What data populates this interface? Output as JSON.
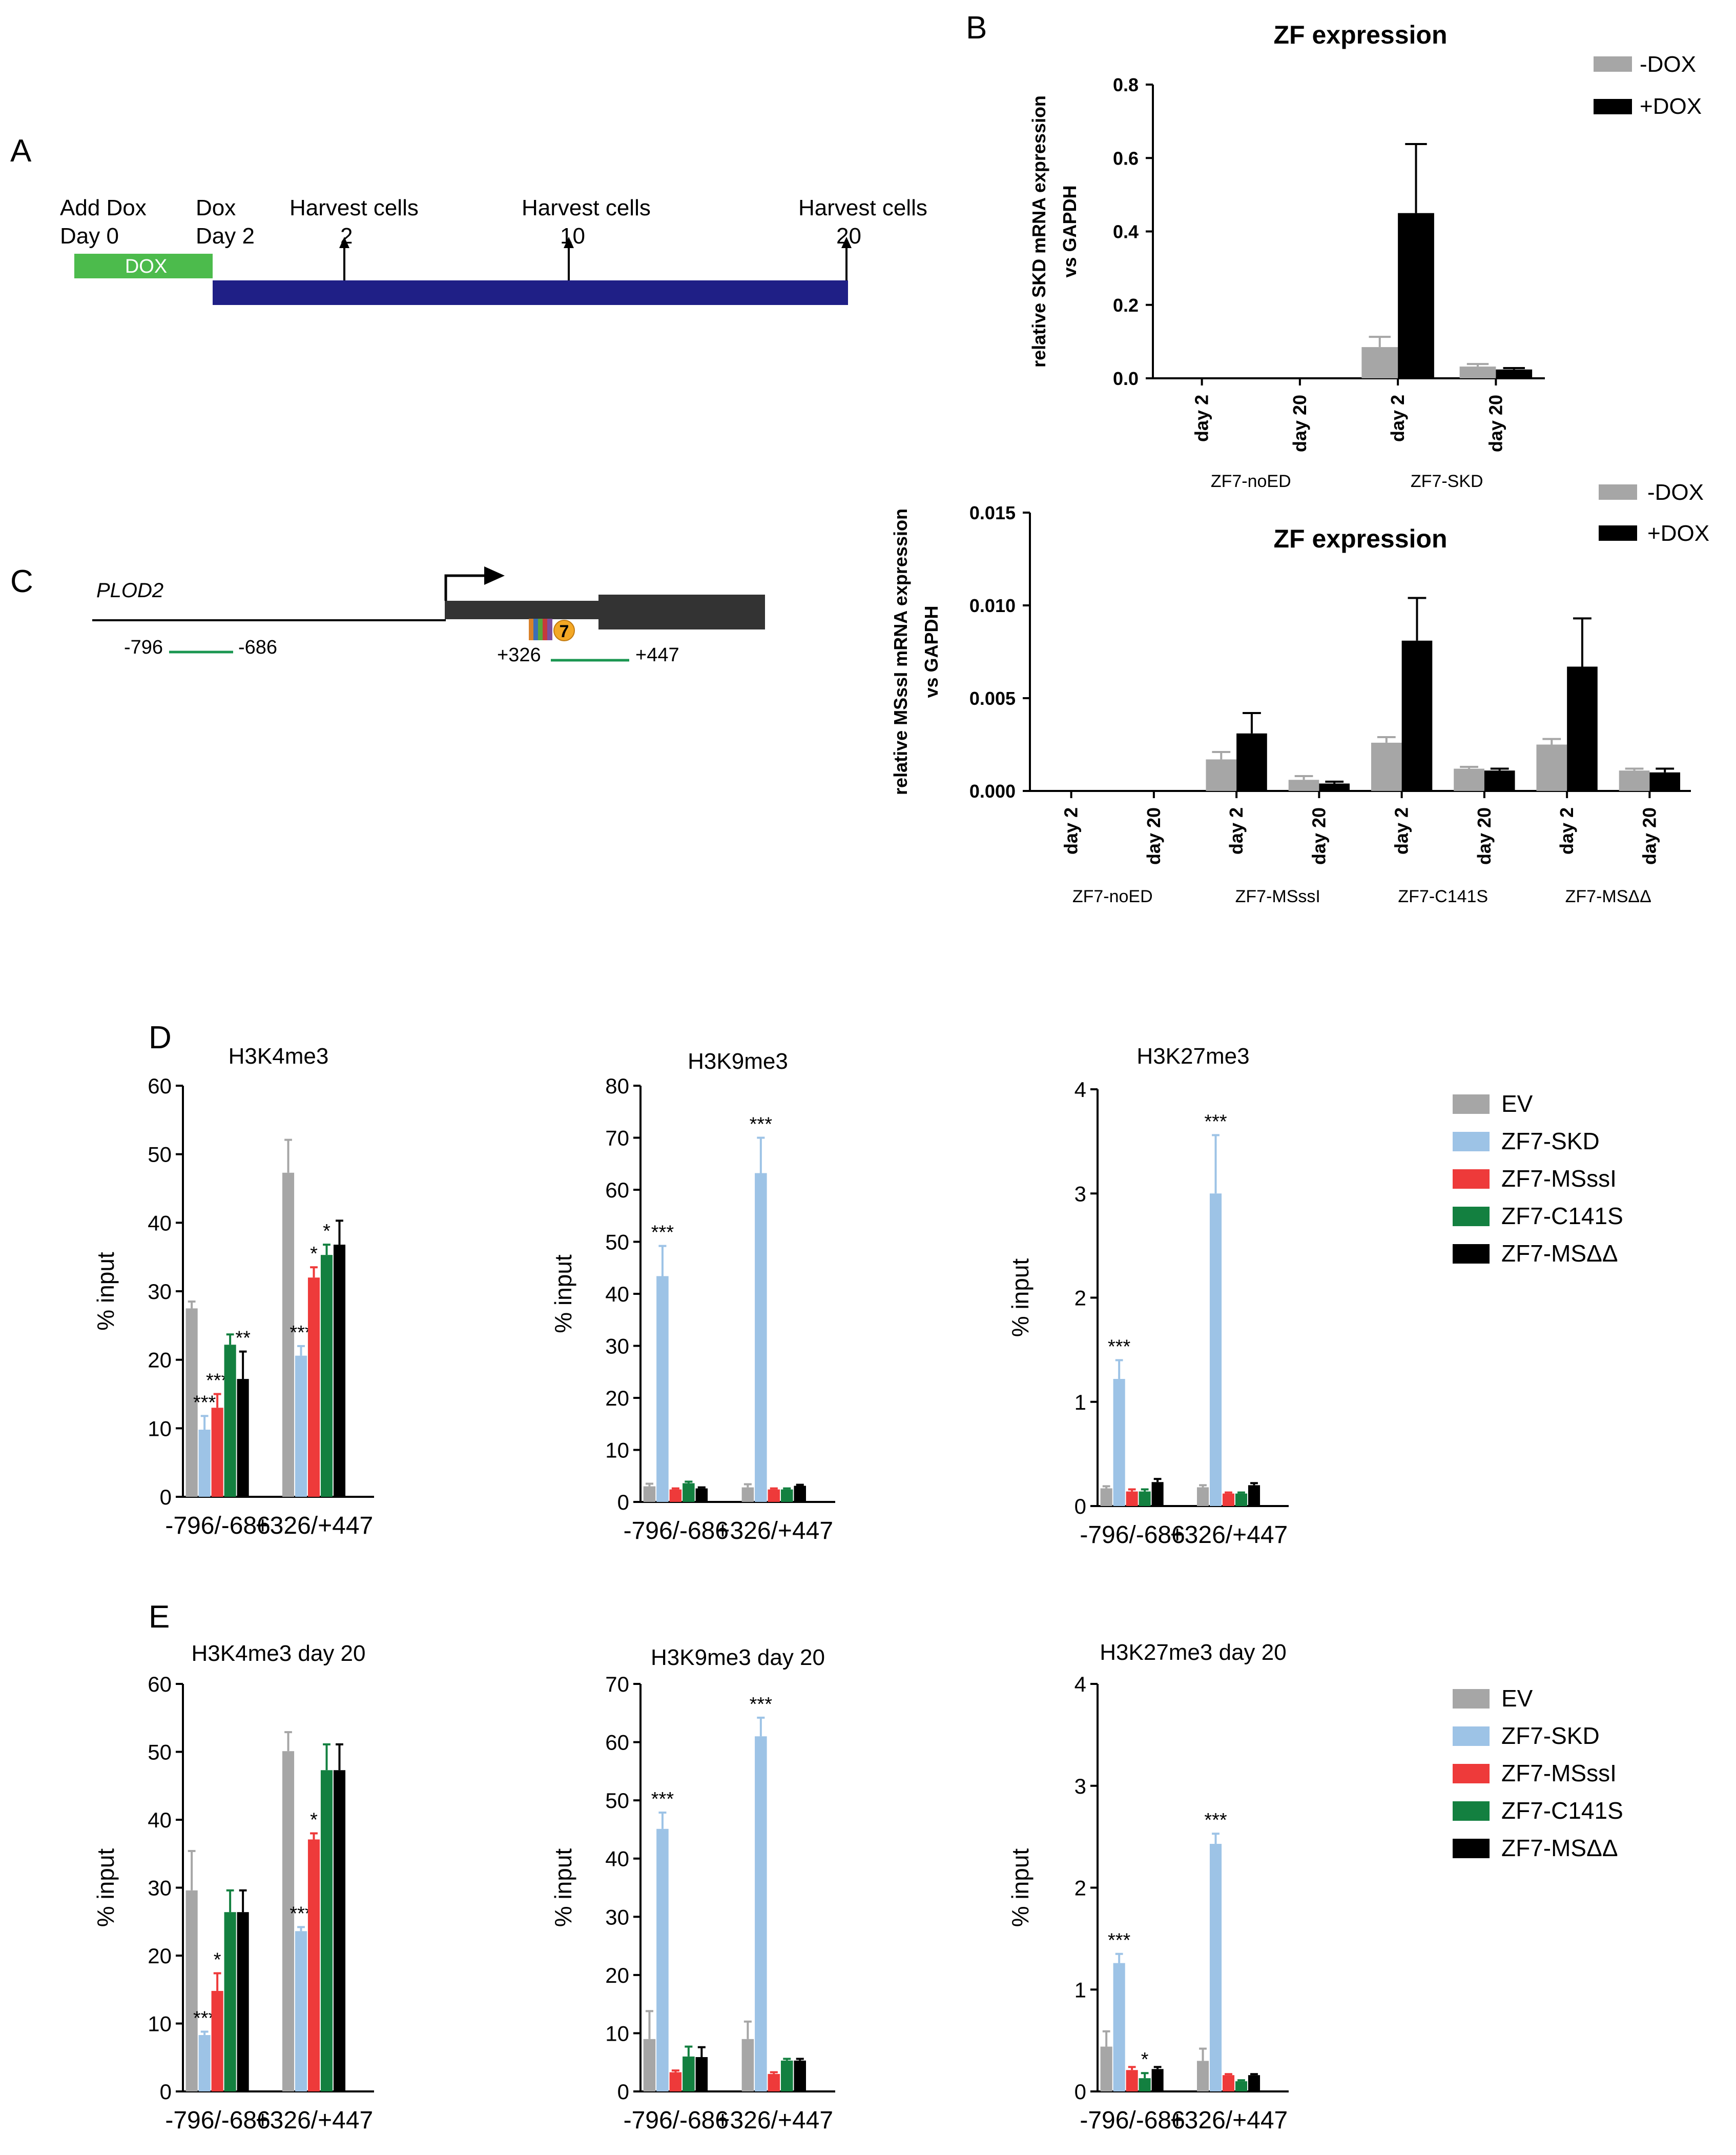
{
  "colors": {
    "minus_dox": "#a6a6a6",
    "plus_dox": "#000000",
    "EV": "#a6a6a6",
    "ZF7-SKD": "#9dc3e6",
    "ZF7-MSssI": "#ee3a3a",
    "ZF7-C141S": "#138040",
    "ZF7-MSDD": "#000000",
    "dox_bar": "#4cbb4c",
    "timeline": "#1f1f86",
    "amplicon": "#1a9650"
  },
  "panelA": {
    "letter": "A",
    "labels": [
      {
        "line1": "Add Dox",
        "line2": "Day 0"
      },
      {
        "line1": "Dox",
        "line2": "Day 2"
      },
      {
        "line1": "Harvest cells",
        "line2": "2"
      },
      {
        "line1": "Harvest cells",
        "line2": "10"
      },
      {
        "line1": "Harvest cells",
        "line2": "20"
      }
    ],
    "dox_label": "DOX"
  },
  "panelC": {
    "letter": "C",
    "gene": "PLOD2",
    "amplicon1_left": "-796",
    "amplicon1_right": "-686",
    "amplicon2_left": "+326",
    "amplicon2_right": "+447",
    "zf_label": "7"
  },
  "panelD": {
    "letter": "D"
  },
  "panelE": {
    "letter": "E"
  },
  "legend_histone": [
    "EV",
    "ZF7-SKD",
    "ZF7-MSssI",
    "ZF7-C141S",
    "ZF7-MSΔΔ"
  ],
  "chart_data": [
    {
      "id": "B1",
      "panel": "B",
      "type": "bar",
      "title": "ZF expression",
      "ylabel_lines": [
        "relative SKD mRNA expression",
        "vs GAPDH"
      ],
      "ylim": [
        0,
        0.8
      ],
      "yticks": [
        0,
        0.2,
        0.4,
        0.6,
        0.8
      ],
      "ytick_labels": [
        "0.0",
        "0.2",
        "0.4",
        "0.6",
        "0.8"
      ],
      "categories": [
        "day 2",
        "day 20",
        "day 2",
        "day 20"
      ],
      "groups": [
        {
          "label": "ZF7-noED",
          "count": 2
        },
        {
          "label": "ZF7-SKD",
          "count": 2
        }
      ],
      "legend": [
        "-DOX",
        "+DOX"
      ],
      "series": [
        {
          "name": "-DOX",
          "values": [
            0,
            0,
            0.085,
            0.032
          ],
          "errors": [
            0,
            0,
            0.028,
            0.007
          ]
        },
        {
          "name": "+DOX",
          "values": [
            0,
            0,
            0.45,
            0.024
          ],
          "errors": [
            0,
            0,
            0.188,
            0.004
          ]
        }
      ]
    },
    {
      "id": "B2",
      "panel": "B",
      "type": "bar",
      "title": "ZF expression",
      "ylabel_lines": [
        "relative MSssI mRNA expression",
        "vs GAPDH"
      ],
      "ylim": [
        0,
        0.015
      ],
      "yticks": [
        0,
        0.005,
        0.01,
        0.015
      ],
      "ytick_labels": [
        "0.000",
        "0.005",
        "0.010",
        "0.015"
      ],
      "categories": [
        "day 2",
        "day 20",
        "day 2",
        "day 20",
        "day 2",
        "day 20",
        "day 2",
        "day 20"
      ],
      "groups": [
        {
          "label": "ZF7-noED",
          "count": 2
        },
        {
          "label": "ZF7-MSssI",
          "count": 2
        },
        {
          "label": "ZF7-C141S",
          "count": 2
        },
        {
          "label": "ZF7-MSΔΔ",
          "count": 2
        }
      ],
      "legend": [
        "-DOX",
        "+DOX"
      ],
      "series": [
        {
          "name": "-DOX",
          "values": [
            0,
            0,
            0.0017,
            0.0006,
            0.0026,
            0.0012,
            0.0025,
            0.0011
          ],
          "errors": [
            0,
            0,
            0.0004,
            0.0002,
            0.0003,
            0.0001,
            0.0003,
            0.0001
          ]
        },
        {
          "name": "+DOX",
          "values": [
            0,
            0,
            0.0031,
            0.0004,
            0.0081,
            0.0011,
            0.0067,
            0.001
          ],
          "errors": [
            0,
            0,
            0.0011,
            0.0001,
            0.0023,
            0.0001,
            0.0026,
            0.0002
          ]
        }
      ]
    },
    {
      "id": "D1",
      "panel": "D",
      "type": "bar",
      "title": "H3K4me3",
      "ylabel": "% input",
      "ylim": [
        0,
        60
      ],
      "yticks": [
        0,
        10,
        20,
        30,
        40,
        50,
        60
      ],
      "categories": [
        "-796/-686",
        "+326/+447"
      ],
      "series": [
        {
          "name": "EV",
          "values": [
            27.5,
            47.3
          ],
          "errors": [
            1,
            4.8
          ],
          "sig": [
            "",
            ""
          ]
        },
        {
          "name": "ZF7-SKD",
          "values": [
            9.8,
            20.6
          ],
          "errors": [
            2,
            1.4
          ],
          "sig": [
            "***",
            "***"
          ]
        },
        {
          "name": "ZF7-MSssI",
          "values": [
            13,
            32
          ],
          "errors": [
            2,
            1.5
          ],
          "sig": [
            "***",
            "*"
          ]
        },
        {
          "name": "ZF7-C141S",
          "values": [
            22.2,
            35.3
          ],
          "errors": [
            1.5,
            1.5
          ],
          "sig": [
            "",
            "*"
          ]
        },
        {
          "name": "ZF7-MSΔΔ",
          "values": [
            17.2,
            36.8
          ],
          "errors": [
            4,
            3.5
          ],
          "sig": [
            "**",
            ""
          ]
        }
      ]
    },
    {
      "id": "D2",
      "panel": "D",
      "type": "bar",
      "title": "H3K9me3",
      "ylabel": "% input",
      "ylim": [
        0,
        80
      ],
      "yticks": [
        0,
        10,
        20,
        30,
        40,
        50,
        60,
        70,
        80
      ],
      "categories": [
        "-796/-686",
        "+326/+447"
      ],
      "series": [
        {
          "name": "EV",
          "values": [
            3,
            2.8
          ],
          "errors": [
            0.5,
            0.6
          ],
          "sig": [
            "",
            ""
          ]
        },
        {
          "name": "ZF7-SKD",
          "values": [
            43.4,
            63.2
          ],
          "errors": [
            5.8,
            6.8
          ],
          "sig": [
            "***",
            "***"
          ]
        },
        {
          "name": "ZF7-MSssI",
          "values": [
            2.4,
            2.4
          ],
          "errors": [
            0.2,
            0.2
          ],
          "sig": [
            "",
            ""
          ]
        },
        {
          "name": "ZF7-C141S",
          "values": [
            3.6,
            2.4
          ],
          "errors": [
            0.3,
            0.2
          ],
          "sig": [
            "",
            ""
          ]
        },
        {
          "name": "ZF7-MSΔΔ",
          "values": [
            2.6,
            3.1
          ],
          "errors": [
            0.2,
            0.2
          ],
          "sig": [
            "",
            ""
          ]
        }
      ]
    },
    {
      "id": "D3",
      "panel": "D",
      "type": "bar",
      "title": "H3K27me3",
      "ylabel": "% input",
      "ylim": [
        0,
        4
      ],
      "yticks": [
        0,
        1,
        2,
        3,
        4
      ],
      "categories": [
        "-796/-686",
        "+326/+447"
      ],
      "series": [
        {
          "name": "EV",
          "values": [
            0.17,
            0.18
          ],
          "errors": [
            0.02,
            0.02
          ],
          "sig": [
            "",
            ""
          ]
        },
        {
          "name": "ZF7-SKD",
          "values": [
            1.22,
            3
          ],
          "errors": [
            0.18,
            0.56
          ],
          "sig": [
            "***",
            "***"
          ]
        },
        {
          "name": "ZF7-MSssI",
          "values": [
            0.14,
            0.12
          ],
          "errors": [
            0.02,
            0.01
          ],
          "sig": [
            "",
            ""
          ]
        },
        {
          "name": "ZF7-C141S",
          "values": [
            0.14,
            0.12
          ],
          "errors": [
            0.02,
            0.01
          ],
          "sig": [
            "",
            ""
          ]
        },
        {
          "name": "ZF7-MSΔΔ",
          "values": [
            0.23,
            0.2
          ],
          "errors": [
            0.03,
            0.02
          ],
          "sig": [
            "",
            ""
          ]
        }
      ]
    },
    {
      "id": "E1",
      "panel": "E",
      "type": "bar",
      "title": "H3K4me3 day 20",
      "ylabel": "% input",
      "ylim": [
        0,
        60
      ],
      "yticks": [
        0,
        10,
        20,
        30,
        40,
        50,
        60
      ],
      "categories": [
        "-796/-686",
        "+326/+447"
      ],
      "series": [
        {
          "name": "EV",
          "values": [
            29.6,
            50.1
          ],
          "errors": [
            5.8,
            2.8
          ],
          "sig": [
            "",
            ""
          ]
        },
        {
          "name": "ZF7-SKD",
          "values": [
            8.3,
            23.6
          ],
          "errors": [
            0.5,
            0.6
          ],
          "sig": [
            "***",
            "***"
          ]
        },
        {
          "name": "ZF7-MSssI",
          "values": [
            14.8,
            37.1
          ],
          "errors": [
            2.6,
            0.9
          ],
          "sig": [
            "*",
            "*"
          ]
        },
        {
          "name": "ZF7-C141S",
          "values": [
            26.4,
            47.3
          ],
          "errors": [
            3.2,
            3.8
          ],
          "sig": [
            "",
            ""
          ]
        },
        {
          "name": "ZF7-MSΔΔ",
          "values": [
            26.4,
            47.3
          ],
          "errors": [
            3.2,
            3.8
          ],
          "sig": [
            "",
            ""
          ]
        }
      ]
    },
    {
      "id": "E2",
      "panel": "E",
      "type": "bar",
      "title": "H3K9me3 day 20",
      "ylabel": "% input",
      "ylim": [
        0,
        70
      ],
      "yticks": [
        0,
        10,
        20,
        30,
        40,
        50,
        60,
        70
      ],
      "categories": [
        "-796/-686",
        "+326/+447"
      ],
      "series": [
        {
          "name": "EV",
          "values": [
            9,
            9
          ],
          "errors": [
            4.8,
            3
          ],
          "sig": [
            "",
            ""
          ]
        },
        {
          "name": "ZF7-SKD",
          "values": [
            45.1,
            61
          ],
          "errors": [
            2.8,
            3.2
          ],
          "sig": [
            "***",
            "***"
          ]
        },
        {
          "name": "ZF7-MSssI",
          "values": [
            3.3,
            3
          ],
          "errors": [
            0.3,
            0.3
          ],
          "sig": [
            "",
            ""
          ]
        },
        {
          "name": "ZF7-C141S",
          "values": [
            6,
            5.3
          ],
          "errors": [
            1.7,
            0.3
          ],
          "sig": [
            "",
            ""
          ]
        },
        {
          "name": "ZF7-MSΔΔ",
          "values": [
            5.9,
            5.3
          ],
          "errors": [
            1.7,
            0.3
          ],
          "sig": [
            "",
            ""
          ]
        }
      ]
    },
    {
      "id": "E3",
      "panel": "E",
      "type": "bar",
      "title": "H3K27me3 day 20",
      "ylabel": "% input",
      "ylim": [
        0,
        4
      ],
      "yticks": [
        0,
        1,
        2,
        3,
        4
      ],
      "categories": [
        "-796/-686",
        "+326/+447"
      ],
      "series": [
        {
          "name": "EV",
          "values": [
            0.44,
            0.3
          ],
          "errors": [
            0.15,
            0.12
          ],
          "sig": [
            "",
            ""
          ]
        },
        {
          "name": "ZF7-SKD",
          "values": [
            1.26,
            2.43
          ],
          "errors": [
            0.09,
            0.1
          ],
          "sig": [
            "***",
            "***"
          ]
        },
        {
          "name": "ZF7-MSssI",
          "values": [
            0.21,
            0.16
          ],
          "errors": [
            0.03,
            0.01
          ],
          "sig": [
            "",
            ""
          ]
        },
        {
          "name": "ZF7-C141S",
          "values": [
            0.13,
            0.1
          ],
          "errors": [
            0.05,
            0.01
          ],
          "sig": [
            "*",
            ""
          ]
        },
        {
          "name": "ZF7-MSΔΔ",
          "values": [
            0.22,
            0.16
          ],
          "errors": [
            0.02,
            0.01
          ],
          "sig": [
            "",
            ""
          ]
        }
      ]
    }
  ]
}
